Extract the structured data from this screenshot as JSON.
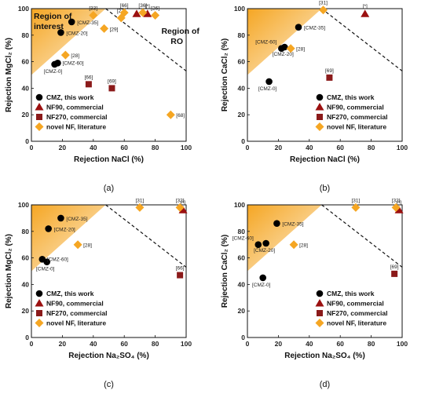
{
  "colors": {
    "cmz": "#000000",
    "nf90": "#9b1010",
    "nf270": "#8b1a1a",
    "lit": "#f5a623",
    "region": "#f5a623"
  },
  "legend_labels": [
    "CMZ, this work",
    "NF90, commercial",
    "NF270, commercial",
    "novel NF, literature"
  ],
  "chart_data": [
    {
      "type": "scatter",
      "panel_label": "(a)",
      "xlabel": "Rejection NaCl (%)",
      "ylabel": "Rejection MgCl₂ (%)",
      "xlim": [
        0,
        100
      ],
      "ylim": [
        0,
        100
      ],
      "xticks": [
        "0",
        "20",
        "40",
        "60",
        "80",
        "100"
      ],
      "yticks": [
        "0",
        "20",
        "40",
        "60",
        "80",
        "100"
      ],
      "region_of_interest": [
        [
          0,
          50
        ],
        [
          0,
          100
        ],
        [
          48,
          100
        ]
      ],
      "ro_line": [
        [
          48,
          100
        ],
        [
          100,
          53
        ]
      ],
      "region_labels": {
        "interest_1": "Region of",
        "interest_2": "interest",
        "ro_1": "Region of",
        "ro_2": "RO"
      },
      "legend_position": "bottom-left",
      "series": [
        {
          "name": "CMZ, this work",
          "marker": "circle",
          "points": [
            {
              "x": 15,
              "y": 58,
              "label": "[CMZ-0]"
            },
            {
              "x": 17,
              "y": 59,
              "label": "[CMZ-60]"
            },
            {
              "x": 19,
              "y": 82,
              "label": "[CMZ-20]"
            },
            {
              "x": 26,
              "y": 90,
              "label": "[CMZ-35]"
            }
          ]
        },
        {
          "name": "NF90, commercial",
          "marker": "triangle",
          "points": [
            {
              "x": 68,
              "y": 96,
              "label": ""
            },
            {
              "x": 75,
              "y": 96,
              "label": "[*]"
            }
          ]
        },
        {
          "name": "NF270, commercial",
          "marker": "square",
          "points": [
            {
              "x": 37,
              "y": 43,
              "label": "[66]"
            },
            {
              "x": 52,
              "y": 40,
              "label": "[69]"
            }
          ]
        },
        {
          "name": "novel NF, literature",
          "marker": "diamond",
          "points": [
            {
              "x": 40,
              "y": 95,
              "label": "[33]"
            },
            {
              "x": 47,
              "y": 85,
              "label": "[29]"
            },
            {
              "x": 58,
              "y": 93,
              "label": "[27]"
            },
            {
              "x": 60,
              "y": 97,
              "label": "[66]"
            },
            {
              "x": 80,
              "y": 95,
              "label": "[26]"
            },
            {
              "x": 22,
              "y": 65,
              "label": "[28]"
            },
            {
              "x": 90,
              "y": 20,
              "label": "[68]"
            },
            {
              "x": 72,
              "y": 97,
              "label": "[36]"
            }
          ]
        }
      ]
    },
    {
      "type": "scatter",
      "panel_label": "(b)",
      "xlabel": "Rejection NaCl (%)",
      "ylabel": "Rejection CaCl₂ (%)",
      "xlim": [
        0,
        100
      ],
      "ylim": [
        0,
        100
      ],
      "xticks": [
        "0",
        "20",
        "40",
        "60",
        "80",
        "100"
      ],
      "yticks": [
        "0",
        "20",
        "40",
        "60",
        "80",
        "100"
      ],
      "region_of_interest": [
        [
          0,
          50
        ],
        [
          0,
          100
        ],
        [
          48,
          100
        ]
      ],
      "ro_line": [
        [
          48,
          100
        ],
        [
          100,
          53
        ]
      ],
      "legend_position": "bottom-right",
      "series": [
        {
          "name": "CMZ, this work",
          "marker": "circle",
          "points": [
            {
              "x": 14,
              "y": 45,
              "label": "[CMZ-0]"
            },
            {
              "x": 22,
              "y": 70,
              "label": "[CMZ-60]"
            },
            {
              "x": 24,
              "y": 71,
              "label": "[CMZ-20]"
            },
            {
              "x": 33,
              "y": 86,
              "label": "[CMZ-35]"
            }
          ]
        },
        {
          "name": "NF90, commercial",
          "marker": "triangle",
          "points": [
            {
              "x": 76,
              "y": 96,
              "label": "[*]"
            }
          ]
        },
        {
          "name": "NF270, commercial",
          "marker": "square",
          "points": [
            {
              "x": 53,
              "y": 48,
              "label": "[69]"
            }
          ]
        },
        {
          "name": "novel NF, literature",
          "marker": "diamond",
          "points": [
            {
              "x": 28,
              "y": 70,
              "label": "[28]"
            },
            {
              "x": 49,
              "y": 99,
              "label": "[31]"
            }
          ]
        }
      ]
    },
    {
      "type": "scatter",
      "panel_label": "(c)",
      "xlabel": "Rejection Na₂SO₄ (%)",
      "ylabel": "Rejection MgCl₂ (%)",
      "xlim": [
        0,
        100
      ],
      "ylim": [
        0,
        100
      ],
      "xticks": [
        "0",
        "20",
        "40",
        "60",
        "80",
        "100"
      ],
      "yticks": [
        "0",
        "20",
        "40",
        "60",
        "80",
        "100"
      ],
      "region_of_interest": [
        [
          0,
          50
        ],
        [
          0,
          100
        ],
        [
          48,
          100
        ]
      ],
      "ro_line": [
        [
          48,
          100
        ],
        [
          100,
          53
        ]
      ],
      "legend_position": "bottom-left",
      "series": [
        {
          "name": "CMZ, this work",
          "marker": "circle",
          "points": [
            {
              "x": 10,
              "y": 57,
              "label": "[CMZ-0]"
            },
            {
              "x": 7,
              "y": 59,
              "label": "[CMZ-60]"
            },
            {
              "x": 11,
              "y": 82,
              "label": "[CMZ-20]"
            },
            {
              "x": 19,
              "y": 90,
              "label": "[CMZ-35]"
            }
          ]
        },
        {
          "name": "NF90, commercial",
          "marker": "triangle",
          "points": [
            {
              "x": 98,
              "y": 96,
              "label": "[*]"
            }
          ]
        },
        {
          "name": "NF270, commercial",
          "marker": "square",
          "points": [
            {
              "x": 96,
              "y": 47,
              "label": "[66]"
            }
          ]
        },
        {
          "name": "novel NF, literature",
          "marker": "diamond",
          "points": [
            {
              "x": 30,
              "y": 70,
              "label": "[28]"
            },
            {
              "x": 70,
              "y": 98,
              "label": "[31]"
            },
            {
              "x": 96,
              "y": 98,
              "label": "[32]"
            }
          ]
        }
      ]
    },
    {
      "type": "scatter",
      "panel_label": "(d)",
      "xlabel": "Rejection Na₂SO₄ (%)",
      "ylabel": "Rejection CaCl₂ (%)",
      "xlim": [
        0,
        100
      ],
      "ylim": [
        0,
        100
      ],
      "xticks": [
        "0",
        "20",
        "40",
        "60",
        "80",
        "100"
      ],
      "yticks": [
        "0",
        "20",
        "40",
        "60",
        "80",
        "100"
      ],
      "region_of_interest": [
        [
          0,
          50
        ],
        [
          0,
          100
        ],
        [
          48,
          100
        ]
      ],
      "ro_line": [
        [
          48,
          100
        ],
        [
          100,
          53
        ]
      ],
      "legend_position": "bottom-right",
      "series": [
        {
          "name": "CMZ, this work",
          "marker": "circle",
          "points": [
            {
              "x": 10,
              "y": 45,
              "label": "[CMZ-0]"
            },
            {
              "x": 7,
              "y": 70,
              "label": "[CMZ-60]"
            },
            {
              "x": 12,
              "y": 71,
              "label": "[CMZ-20]"
            },
            {
              "x": 19,
              "y": 86,
              "label": "[CMZ-35]"
            }
          ]
        },
        {
          "name": "NF90, commercial",
          "marker": "triangle",
          "points": [
            {
              "x": 98,
              "y": 96,
              "label": "[*]"
            }
          ]
        },
        {
          "name": "NF270, commercial",
          "marker": "square",
          "points": [
            {
              "x": 95,
              "y": 48,
              "label": "[69]"
            }
          ]
        },
        {
          "name": "novel NF, literature",
          "marker": "diamond",
          "points": [
            {
              "x": 30,
              "y": 70,
              "label": "[28]"
            },
            {
              "x": 70,
              "y": 98,
              "label": "[31]"
            },
            {
              "x": 96,
              "y": 98,
              "label": "[32]"
            }
          ]
        }
      ]
    }
  ]
}
